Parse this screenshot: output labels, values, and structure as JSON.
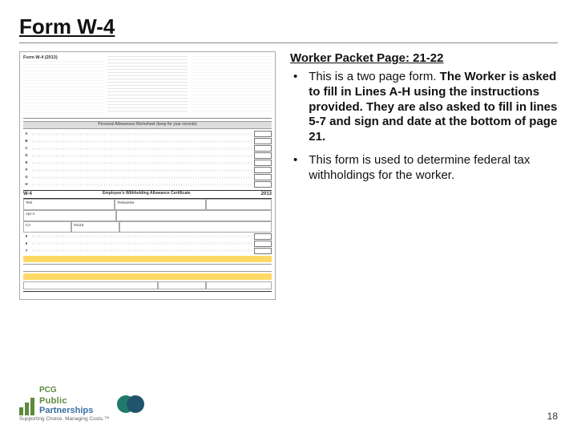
{
  "slide": {
    "title": "Form W-4",
    "page_number": "18"
  },
  "notes": {
    "heading": "Worker Packet Page: 21-22",
    "bullets": [
      "This is a two page form. The Worker is asked to fill in Lines A-H using the instructions provided. They are also asked to fill in lines 5-7 and sign and date at the bottom of page 21.",
      "This form is used to determine federal tax withholdings for the worker."
    ],
    "bold_span_in_first_bullet": "The Worker is asked to fill in Lines A-H using the instructions provided. They are also asked to fill in lines 5-7 and sign and date at the bottom of page 21."
  },
  "form_thumb": {
    "top_left_heading": "Form W-4 (2013)",
    "worksheet_bar": "Personal Allowances Worksheet (keep for your records)",
    "worksheet_rows": [
      "A",
      "B",
      "C",
      "D",
      "E",
      "F",
      "G",
      "H"
    ],
    "cert_left": "W-4",
    "cert_center": "Employee's Withholding Allowance Certificate",
    "cert_right": "2013",
    "field_name_left": "Test",
    "field_name_right": "Testworker",
    "field_day": "Apr-4",
    "field_state": "CA",
    "field_zip": "94115",
    "colors": {
      "highlight": "#ffd966",
      "border": "#888888"
    }
  },
  "footer": {
    "pcg_line1": "Public",
    "pcg_line2": "Partnerships",
    "pcg_tag": "Supporting Choice. Managing Costs.™",
    "pcg_abbrev": "PCG",
    "pp_colors": {
      "left": "#207a6c",
      "right": "#20546c"
    }
  }
}
